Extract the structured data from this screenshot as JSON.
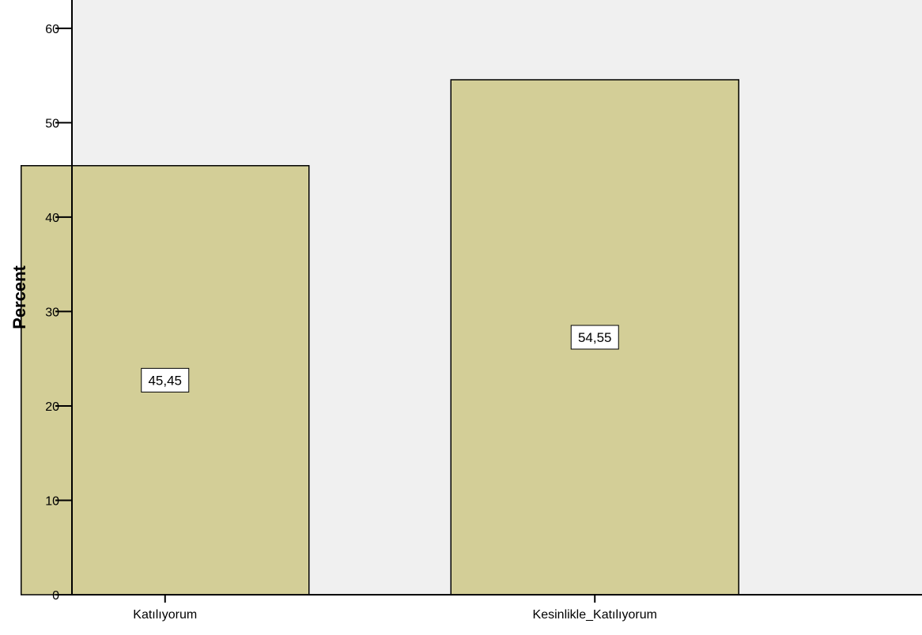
{
  "chart_data": {
    "type": "bar",
    "title": "",
    "xlabel": "",
    "ylabel": "Percent",
    "categories": [
      "Katılıyorum",
      "Kesinlikle_Katılıyorum"
    ],
    "values": [
      45.45,
      54.55
    ],
    "value_labels": [
      "45,45",
      "54,55"
    ],
    "ylim": [
      0,
      63
    ],
    "yticks": [
      0,
      10,
      20,
      30,
      40,
      50,
      60
    ],
    "ytick_labels": [
      "0",
      "10",
      "20",
      "30",
      "40",
      "50",
      "60"
    ],
    "grid": false,
    "legend": "none",
    "colors": {
      "plot_background": "#f0f0f0",
      "bar_fill": "#d3ce97",
      "bar_stroke": "#000000",
      "label_box_fill": "#ffffff"
    }
  }
}
